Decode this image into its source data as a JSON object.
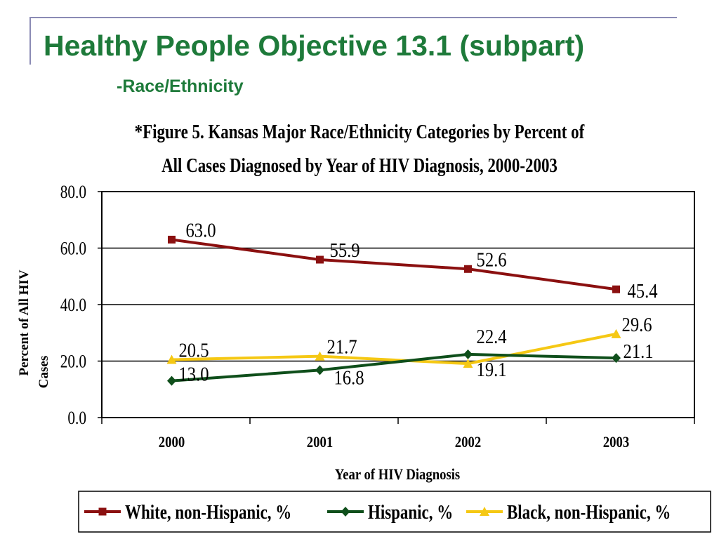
{
  "slide": {
    "title": "Healthy People Objective 13.1 (subpart)",
    "subtitle": "-Race/Ethnicity"
  },
  "colors": {
    "title_green": "#1e7a3a",
    "white_series": "#8b1010",
    "hispanic_series": "#0f4f1b",
    "black_series": "#f5c814"
  },
  "chart_data": {
    "type": "line",
    "title": "*Figure 5. Kansas Major Race/Ethnicity Categories by Percent of All Cases Diagnosed by Year of HIV Diagnosis, 2000-2003",
    "title_lines": [
      "*Figure 5. Kansas Major Race/Ethnicity Categories by Percent of",
      "All Cases Diagnosed by Year of HIV Diagnosis, 2000-2003"
    ],
    "xlabel": "Year of HIV Diagnosis",
    "ylabel": "Percent of All HIV Cases",
    "ylabel_lines": [
      "Percent of All HIV",
      "Cases"
    ],
    "categories": [
      "2000",
      "2001",
      "2002",
      "2003"
    ],
    "ylim": [
      0,
      80
    ],
    "yticks": [
      "0.0",
      "20.0",
      "40.0",
      "60.0",
      "80.0"
    ],
    "grid": "horizontal",
    "legend_position": "bottom",
    "series": [
      {
        "name": "White, non-Hispanic, %",
        "marker": "square",
        "color": "#8b1010",
        "values": [
          63.0,
          55.9,
          52.6,
          45.4
        ],
        "labels": [
          "63.0",
          "55.9",
          "52.6",
          "45.4"
        ]
      },
      {
        "name": "Hispanic, %",
        "marker": "diamond",
        "color": "#0f4f1b",
        "values": [
          13.0,
          16.8,
          22.4,
          21.1
        ],
        "labels": [
          "13.0",
          "16.8",
          "22.4",
          "21.1"
        ]
      },
      {
        "name": "Black, non-Hispanic, %",
        "marker": "triangle",
        "color": "#f5c814",
        "values": [
          20.5,
          21.7,
          19.1,
          29.6
        ],
        "labels": [
          "20.5",
          "21.7",
          "19.1",
          "29.6"
        ]
      }
    ]
  }
}
